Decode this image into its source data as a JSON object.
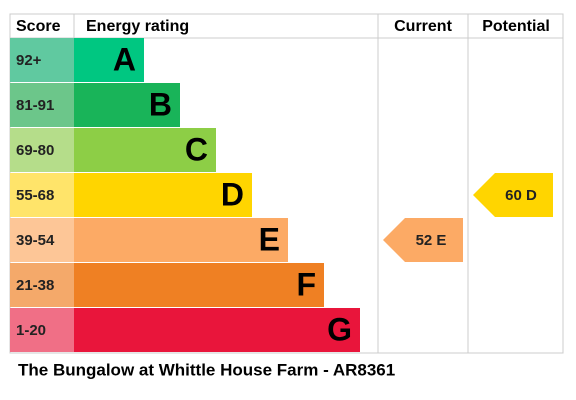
{
  "header": {
    "score": "Score",
    "rating": "Energy rating",
    "current": "Current",
    "potential": "Potential"
  },
  "bands": [
    {
      "score": "92+",
      "letter": "A",
      "color": "#00c781",
      "score_color": "#60c9a0"
    },
    {
      "score": "81-91",
      "letter": "B",
      "color": "#19b459",
      "score_color": "#6cc68a"
    },
    {
      "score": "69-80",
      "letter": "C",
      "color": "#8dce46",
      "score_color": "#b5dd8a"
    },
    {
      "score": "55-68",
      "letter": "D",
      "color": "#ffd500",
      "score_color": "#ffe46a"
    },
    {
      "score": "39-54",
      "letter": "E",
      "color": "#fcaa65",
      "score_color": "#fdc697"
    },
    {
      "score": "21-38",
      "letter": "F",
      "color": "#ef8023",
      "score_color": "#f4a96a"
    },
    {
      "score": "1-20",
      "letter": "G",
      "color": "#e9153b",
      "score_color": "#f06f86"
    }
  ],
  "current": {
    "score": 52,
    "rating": "E"
  },
  "potential": {
    "score": 60,
    "rating": "D"
  },
  "footer": "The Bungalow at Whittle House Farm - AR8361"
}
